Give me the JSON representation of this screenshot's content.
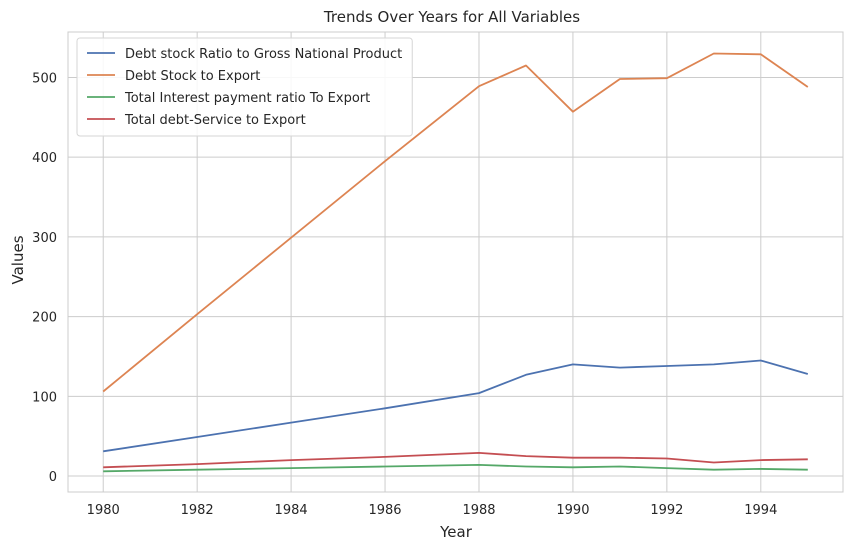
{
  "chart_data": {
    "type": "line",
    "title": "Trends Over Years for All Variables",
    "xlabel": "Year",
    "ylabel": "Values",
    "x": [
      1980,
      1982,
      1984,
      1986,
      1988,
      1989,
      1990,
      1991,
      1992,
      1993,
      1994,
      1995
    ],
    "xticks": [
      1980,
      1982,
      1984,
      1986,
      1988,
      1990,
      1992,
      1994
    ],
    "yticks": [
      0,
      100,
      200,
      300,
      400,
      500
    ],
    "xlim": [
      1979.25,
      1995.75
    ],
    "ylim": [
      -20,
      557
    ],
    "grid": true,
    "legend_position": "top-left",
    "series": [
      {
        "name": "Debt stock Ratio to Gross National Product",
        "color": "#4c72b0",
        "values": [
          31,
          49,
          67,
          85,
          104,
          127,
          140,
          136,
          138,
          140,
          145,
          128
        ]
      },
      {
        "name": "Debt Stock to Export",
        "color": "#dd8452",
        "values": [
          106,
          203,
          299,
          395,
          489,
          515,
          457,
          498,
          499,
          530,
          529,
          488
        ]
      },
      {
        "name": "Total Interest payment ratio To Export",
        "color": "#55a868",
        "values": [
          6,
          8,
          10,
          12,
          14,
          12,
          11,
          12,
          10,
          8,
          9,
          8
        ]
      },
      {
        "name": "Total debt-Service to Export",
        "color": "#c44e52",
        "values": [
          11,
          15,
          20,
          24,
          29,
          25,
          23,
          23,
          22,
          17,
          20,
          21
        ]
      }
    ]
  }
}
